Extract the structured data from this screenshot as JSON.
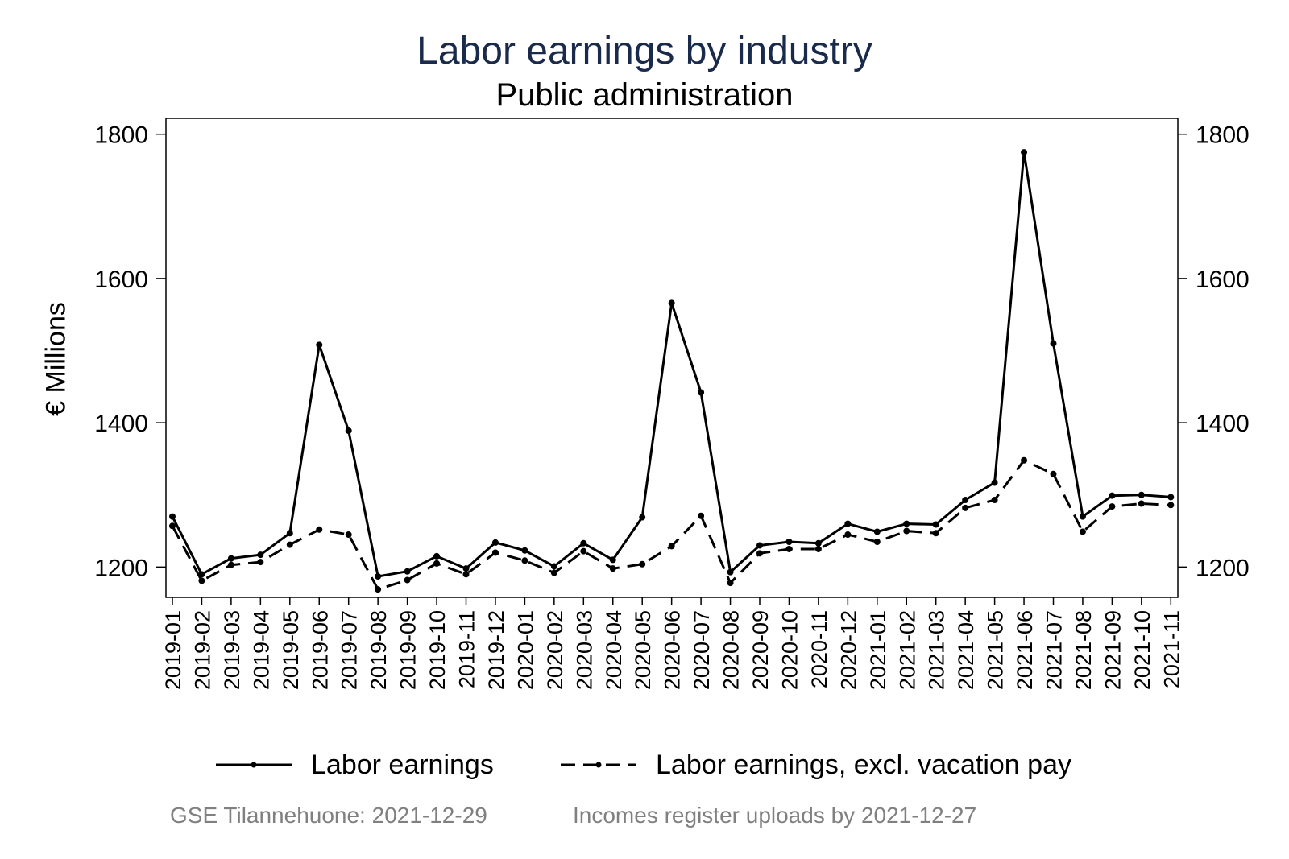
{
  "chart_data": {
    "type": "line",
    "title": "Labor earnings by industry",
    "subtitle": "Public administration",
    "ylabel": "€ Millions",
    "ylim": [
      1158,
      1822
    ],
    "yticks": [
      1200,
      1400,
      1600,
      1800
    ],
    "categories": [
      "2019-01",
      "2019-02",
      "2019-03",
      "2019-04",
      "2019-05",
      "2019-06",
      "2019-07",
      "2019-08",
      "2019-09",
      "2019-10",
      "2019-11",
      "2019-12",
      "2020-01",
      "2020-02",
      "2020-03",
      "2020-04",
      "2020-05",
      "2020-06",
      "2020-07",
      "2020-08",
      "2020-09",
      "2020-10",
      "2020-11",
      "2020-12",
      "2021-01",
      "2021-02",
      "2021-03",
      "2021-04",
      "2021-05",
      "2021-06",
      "2021-07",
      "2021-08",
      "2021-09",
      "2021-10",
      "2021-11"
    ],
    "series": [
      {
        "name": "Labor earnings",
        "style": "solid",
        "values": [
          1270,
          1190,
          1212,
          1217,
          1247,
          1508,
          1389,
          1187,
          1194,
          1215,
          1198,
          1234,
          1223,
          1201,
          1233,
          1210,
          1269,
          1566,
          1442,
          1193,
          1230,
          1235,
          1233,
          1260,
          1249,
          1260,
          1259,
          1293,
          1317,
          1775,
          1510,
          1270,
          1299,
          1300,
          1297
        ]
      },
      {
        "name": "Labor earnings, excl. vacation pay",
        "style": "dashed",
        "values": [
          1257,
          1181,
          1203,
          1207,
          1231,
          1252,
          1245,
          1169,
          1182,
          1205,
          1190,
          1220,
          1209,
          1192,
          1222,
          1198,
          1204,
          1229,
          1271,
          1178,
          1219,
          1225,
          1225,
          1245,
          1235,
          1250,
          1247,
          1282,
          1293,
          1348,
          1329,
          1249,
          1284,
          1288,
          1286
        ]
      }
    ],
    "grid": false,
    "legend_position": "bottom",
    "colors": {
      "line": "#000000",
      "title": "#1a2a4a",
      "note": "#808080"
    }
  },
  "notes": {
    "left": "GSE Tilannehuone: 2021-12-29",
    "right": "Incomes register uploads by 2021-12-27"
  }
}
